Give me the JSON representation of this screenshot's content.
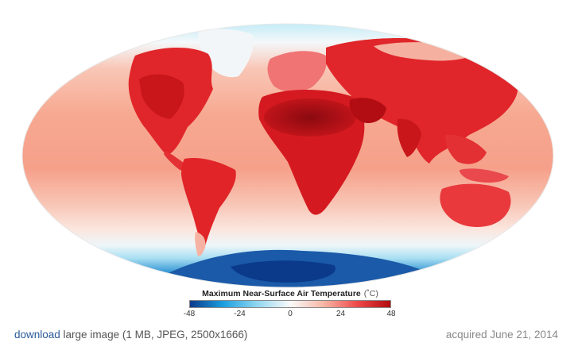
{
  "legend": {
    "title": "Maximum Near-Surface Air Temperature",
    "unit": "(˚C)",
    "ticks": [
      "-48",
      "-24",
      "0",
      "24",
      "48"
    ],
    "colors": {
      "very_cold": "#0b3a8a",
      "cold": "#1c9fe0",
      "cool": "#8fd6ef",
      "neutral": "#fafafa",
      "warm": "#f7b7a6",
      "hot": "#ef4a4a",
      "very_hot": "#b10d12"
    }
  },
  "caption": {
    "download_link": "download",
    "download_rest": " large image (1 MB, JPEG, 2500x1666)",
    "acquired": "acquired June 21, 2014"
  }
}
